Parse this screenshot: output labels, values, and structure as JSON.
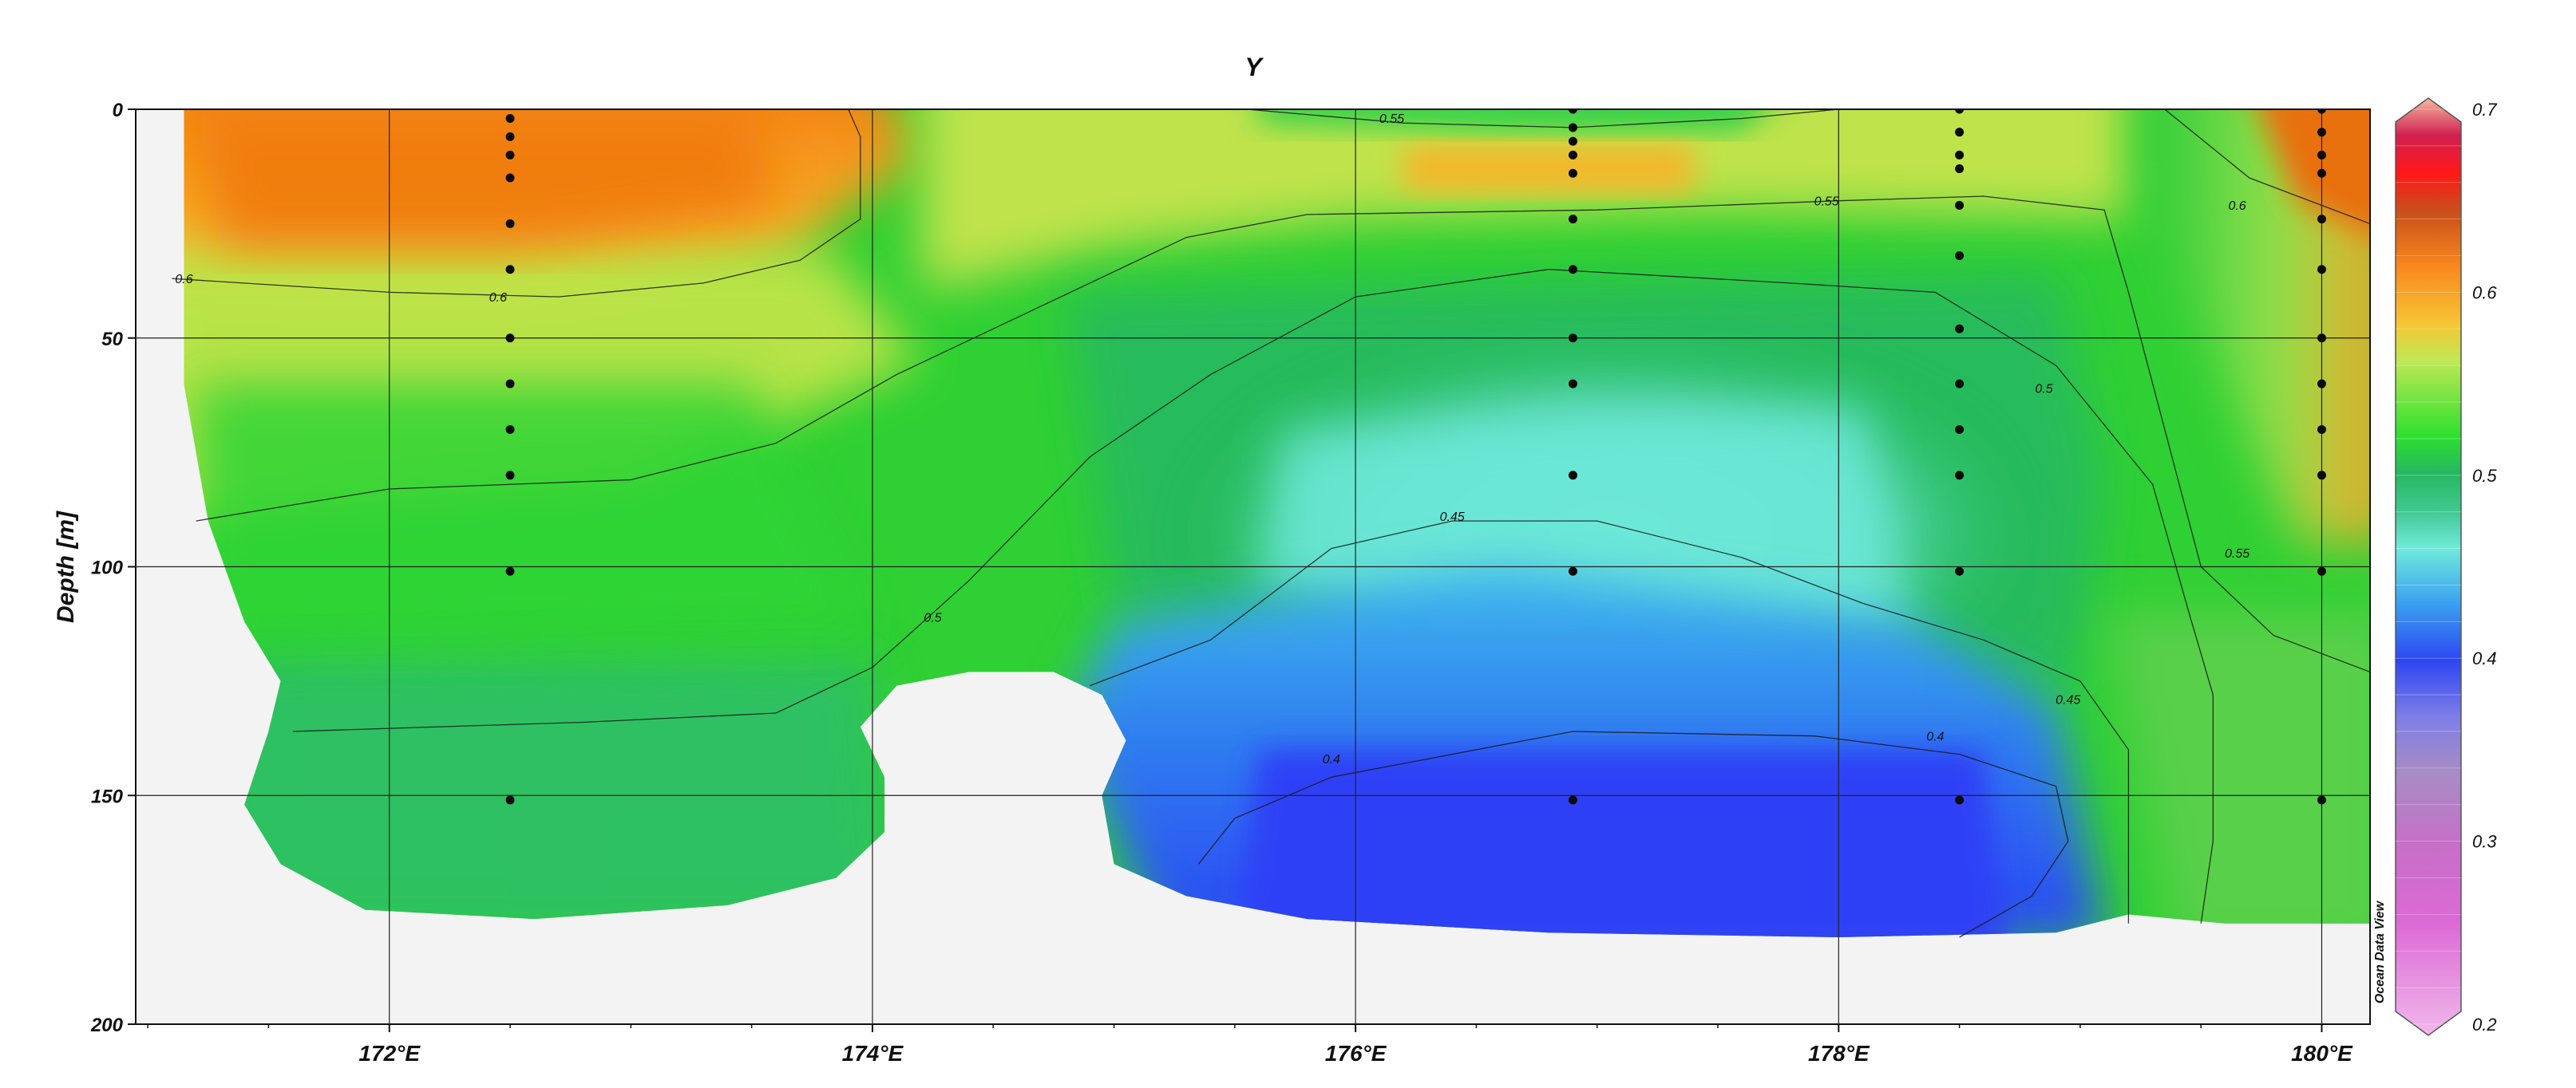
{
  "chart_data": {
    "type": "heatmap",
    "title": "Y",
    "xlabel": "",
    "ylabel": "Depth [m]",
    "watermark": "Ocean Data View",
    "xlim": [
      170.95,
      180.2
    ],
    "ylim": [
      0,
      200
    ],
    "y_inverted": true,
    "grid": true,
    "x_ticks": [
      172,
      174,
      176,
      178,
      180
    ],
    "x_tick_labels": [
      "172°E",
      "174°E",
      "176°E",
      "178°E",
      "180°E"
    ],
    "y_ticks": [
      0,
      50,
      100,
      150,
      200
    ],
    "y_tick_labels": [
      "0",
      "50",
      "100",
      "150",
      "200"
    ],
    "colorbar": {
      "min": 0.2,
      "max": 0.7,
      "ticks": [
        0.2,
        0.3,
        0.4,
        0.5,
        0.6,
        0.7
      ],
      "tick_labels": [
        "0.2",
        "0.3",
        "0.4",
        "0.5",
        "0.6",
        "0.7"
      ],
      "colors": [
        {
          "v": 0.2,
          "c": "#f0b8ea"
        },
        {
          "v": 0.26,
          "c": "#dc6ad6"
        },
        {
          "v": 0.3,
          "c": "#c86ec8"
        },
        {
          "v": 0.34,
          "c": "#a88cc4"
        },
        {
          "v": 0.37,
          "c": "#7e7ee6"
        },
        {
          "v": 0.4,
          "c": "#2d46f2"
        },
        {
          "v": 0.43,
          "c": "#3aa0f0"
        },
        {
          "v": 0.46,
          "c": "#70eada"
        },
        {
          "v": 0.48,
          "c": "#40c890"
        },
        {
          "v": 0.5,
          "c": "#25b860"
        },
        {
          "v": 0.52,
          "c": "#2ee02e"
        },
        {
          "v": 0.56,
          "c": "#bfe856"
        },
        {
          "v": 0.58,
          "c": "#f7c534"
        },
        {
          "v": 0.61,
          "c": "#f8881e"
        },
        {
          "v": 0.64,
          "c": "#c84e1a"
        },
        {
          "v": 0.66,
          "c": "#ff1818"
        },
        {
          "v": 0.68,
          "c": "#d02050"
        },
        {
          "v": 0.7,
          "c": "#f6b8a0"
        }
      ]
    },
    "station_columns": [
      {
        "lon": 172.5,
        "depths": [
          2,
          6,
          10,
          15,
          25,
          35,
          50,
          60,
          70,
          80,
          101,
          151
        ]
      },
      {
        "lon": 176.9,
        "depths": [
          0,
          4,
          7,
          10,
          14,
          24,
          35,
          50,
          60,
          80,
          101,
          151
        ]
      },
      {
        "lon": 178.5,
        "depths": [
          0,
          5,
          10,
          13,
          21,
          32,
          48,
          60,
          70,
          80,
          101,
          151
        ]
      },
      {
        "lon": 180.0,
        "depths": [
          0,
          5,
          10,
          14,
          24,
          35,
          50,
          60,
          70,
          80,
          101,
          151
        ]
      }
    ],
    "contour_labels": [
      {
        "value": 0.6,
        "text": "0.6",
        "lon": 171.15,
        "depth": 38
      },
      {
        "value": 0.6,
        "text": "0.6",
        "lon": 172.45,
        "depth": 42
      },
      {
        "value": 0.55,
        "text": "0.55",
        "lon": 176.15,
        "depth": 3
      },
      {
        "value": 0.55,
        "text": "0.55",
        "lon": 177.95,
        "depth": 21
      },
      {
        "value": 0.6,
        "text": "0.6",
        "lon": 179.65,
        "depth": 22
      },
      {
        "value": 0.5,
        "text": "0.5",
        "lon": 178.85,
        "depth": 62
      },
      {
        "value": 0.55,
        "text": "0.55",
        "lon": 179.65,
        "depth": 98
      },
      {
        "value": 0.45,
        "text": "0.45",
        "lon": 176.4,
        "depth": 90
      },
      {
        "value": 0.5,
        "text": "0.5",
        "lon": 174.25,
        "depth": 112
      },
      {
        "value": 0.45,
        "text": "0.45",
        "lon": 178.95,
        "depth": 130
      },
      {
        "value": 0.4,
        "text": "0.4",
        "lon": 178.4,
        "depth": 138
      },
      {
        "value": 0.4,
        "text": "0.4",
        "lon": 175.9,
        "depth": 143
      }
    ]
  }
}
